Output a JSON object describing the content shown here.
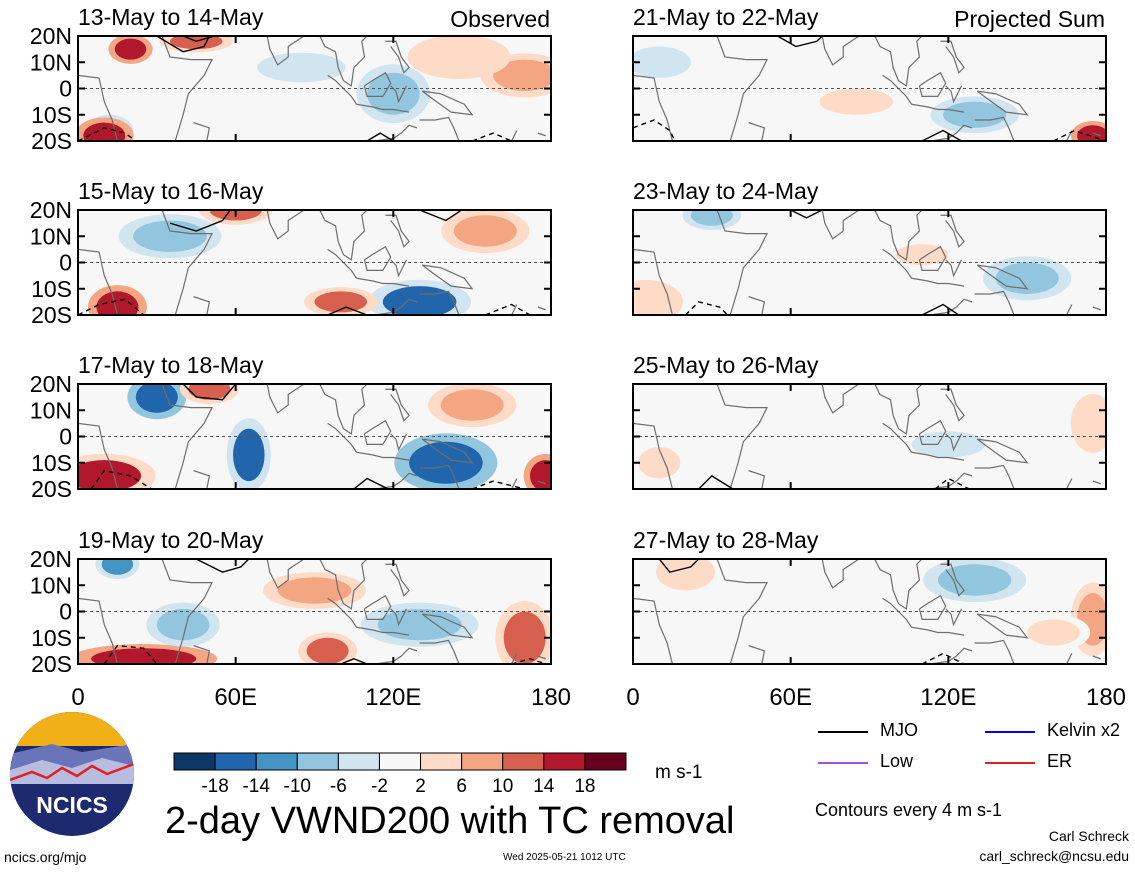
{
  "figure": {
    "title": "2-day VWND200 with TC removal",
    "panel_labels": {
      "observed": "Observed",
      "projected": "Projected Sum"
    },
    "units": "m s-1",
    "contour_note": "Contours every 4 m s-1",
    "author": "Carl Schreck",
    "email": "carl_schreck@ncsu.edu",
    "site": "ncics.org/mjo",
    "timestamp": "Wed 2025-05-21 1012 UTC",
    "logo_text": "NCICS"
  },
  "legend": {
    "items": [
      {
        "label": "MJO",
        "color": "#000000"
      },
      {
        "label": "Kelvin x2",
        "color": "#0000ff"
      },
      {
        "label": "Low",
        "color": "#a050e0"
      },
      {
        "label": "ER",
        "color": "#e02020"
      }
    ]
  },
  "colorbar": {
    "ticks": [
      "-18",
      "-14",
      "-10",
      "-6",
      "-2",
      "2",
      "6",
      "10",
      "14",
      "18"
    ],
    "colors": [
      "#0d3767",
      "#2166ac",
      "#4393c3",
      "#92c5de",
      "#d1e5f0",
      "#f7f7f7",
      "#fddbc7",
      "#f4a582",
      "#d6604d",
      "#b2182b",
      "#67001f"
    ]
  },
  "chart_data": {
    "type": "heatmap",
    "variable": "VWND200",
    "xlim": [
      0,
      180
    ],
    "ylim": [
      -20,
      20
    ],
    "x_ticks": [
      "0",
      "60E",
      "120E",
      "180"
    ],
    "y_ticks": [
      "20N",
      "10N",
      "0",
      "10S",
      "20S"
    ],
    "left_column": [
      {
        "period": "13-May to 14-May"
      },
      {
        "period": "15-May to 16-May"
      },
      {
        "period": "17-May to 18-May"
      },
      {
        "period": "19-May to 20-May"
      }
    ],
    "right_column": [
      {
        "period": "21-May to 22-May"
      },
      {
        "period": "23-May to 24-May"
      },
      {
        "period": "25-May to 26-May"
      },
      {
        "period": "27-May to 28-May"
      }
    ],
    "color_levels": [
      -18,
      -14,
      -10,
      -6,
      -2,
      2,
      6,
      10,
      14,
      18
    ]
  }
}
